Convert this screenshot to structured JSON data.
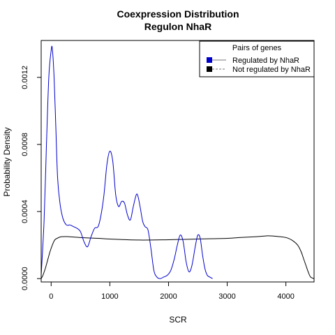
{
  "chart_data": {
    "type": "line",
    "title": [
      "Coexpression Distribution",
      "Regulon NhaR"
    ],
    "xlabel": "SCR",
    "ylabel": "Probability Density",
    "xlim": [
      -170,
      4480
    ],
    "ylim": [
      -2e-05,
      0.00142
    ],
    "x_ticks": [
      0,
      1000,
      2000,
      3000,
      4000
    ],
    "x_tick_labels": [
      "0",
      "1000",
      "2000",
      "3000",
      "4000"
    ],
    "y_ticks": [
      0.0,
      0.0004,
      0.0008,
      0.0012
    ],
    "y_tick_labels": [
      "0.0000",
      "0.0004",
      "0.0008",
      "0.0012"
    ],
    "legend": {
      "title": "Pairs of genes",
      "position": "top-right",
      "items": [
        {
          "label": "Regulated by  NhaR",
          "color": "#0000CC",
          "line": "solid"
        },
        {
          "label": "Not regulated by  NhaR",
          "color": "#000000",
          "line": "dashed"
        }
      ]
    },
    "series": [
      {
        "name": "Regulated by  NhaR",
        "color": "#0000CC",
        "x": [
          -170,
          -120,
          -80,
          -40,
          0,
          20,
          50,
          80,
          110,
          150,
          200,
          260,
          320,
          380,
          440,
          500,
          560,
          620,
          680,
          740,
          800,
          850,
          900,
          950,
          1000,
          1050,
          1100,
          1150,
          1200,
          1250,
          1300,
          1350,
          1400,
          1450,
          1480,
          1520,
          1560,
          1600,
          1650,
          1700,
          1750,
          1800,
          1860,
          1920,
          1980,
          2040,
          2100,
          2150,
          2200,
          2250,
          2300,
          2350,
          2400,
          2460,
          2500,
          2540,
          2580,
          2620,
          2660,
          2700,
          2750
        ],
        "y": [
          2e-05,
          0.00035,
          0.0008,
          0.0012,
          0.00136,
          0.00137,
          0.0012,
          0.0009,
          0.0006,
          0.00045,
          0.00036,
          0.00032,
          0.00032,
          0.00031,
          0.0003,
          0.00028,
          0.00022,
          0.00019,
          0.00025,
          0.0003,
          0.00031,
          0.00038,
          0.0005,
          0.00068,
          0.00076,
          0.0007,
          0.0005,
          0.00043,
          0.00046,
          0.00045,
          0.00038,
          0.00035,
          0.00043,
          0.0005,
          0.00049,
          0.00042,
          0.00034,
          0.00031,
          0.00029,
          0.00018,
          5e-05,
          1e-05,
          0.0,
          1e-05,
          2e-05,
          5e-05,
          0.00012,
          0.0002,
          0.00026,
          0.00022,
          0.0001,
          4e-05,
          8e-05,
          0.0002,
          0.00026,
          0.00024,
          0.00014,
          6e-05,
          2e-05,
          1e-05,
          0.0
        ]
      },
      {
        "name": "Not regulated by  NhaR",
        "color": "#000000",
        "x": [
          -170,
          -140,
          -100,
          -60,
          -20,
          20,
          60,
          100,
          150,
          200,
          300,
          500,
          800,
          1000,
          1500,
          2000,
          2500,
          3000,
          3200,
          3500,
          3700,
          3900,
          4000,
          4100,
          4200,
          4260,
          4300,
          4340,
          4380,
          4420,
          4480
        ],
        "y": [
          0.0,
          2e-05,
          6e-05,
          0.00011,
          0.00016,
          0.0002,
          0.00023,
          0.00024,
          0.000248,
          0.00025,
          0.00025,
          0.000245,
          0.00024,
          0.000236,
          0.00023,
          0.000232,
          0.000236,
          0.00024,
          0.000245,
          0.00025,
          0.000255,
          0.00025,
          0.000245,
          0.00023,
          0.0002,
          0.00016,
          0.00012,
          8e-05,
          4e-05,
          1e-05,
          0.0
        ]
      }
    ],
    "grid": false
  }
}
